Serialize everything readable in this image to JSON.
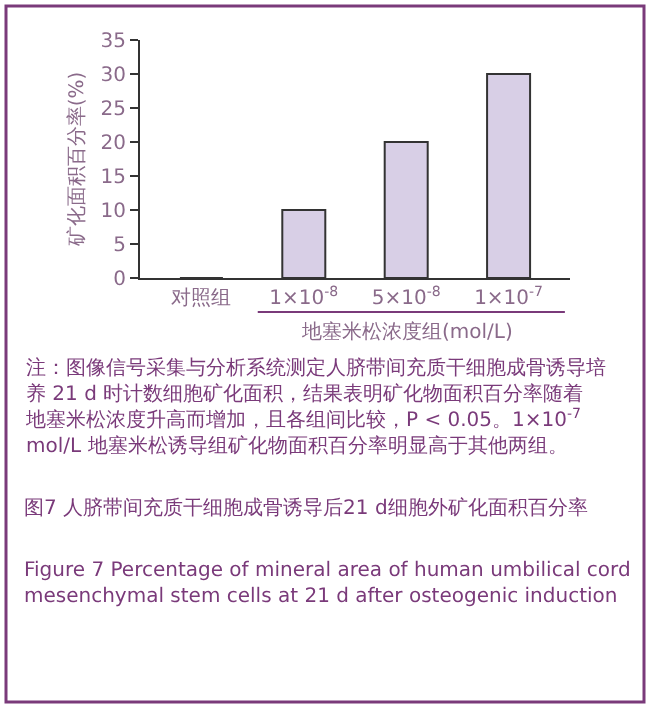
{
  "chart_data": {
    "type": "bar",
    "categories": [
      "对照组",
      "1×10$^{-8}$",
      "5×10$^{-8}$",
      "1×10$^{-7}$"
    ],
    "values": [
      0,
      10,
      20,
      30
    ],
    "color": "#d8cfe6",
    "ylim": [
      0,
      35
    ],
    "yticks": [
      0,
      5,
      10,
      15,
      20,
      25,
      30,
      35
    ],
    "legend": false,
    "xlabel": "地塞米松浓度组(mol/L)",
    "ylabel": "矿化面积百分率(%)",
    "annotations": [
      "注：图像信号采集与分析系统测定人脐带间充质干细胞成骨诱导培养 21 d 时计数细胞矿化面积，结果表明矿化物面积百分率随着地塞米松浓度升高而增加，且各组间比较，P < 0.05。1×10$^{-7}$ mol/L 地塞米松诱导组矿化物面积百分率明显高于其他两组。",
      "图7 人脐带间充质干细胞成骨诱导后21 d细胞外矿化面积百分率",
      "Figure 7 Percentage of mineral area of human umbilical cord mesenchymal stem cells at 21 d after osteogenic induction"
    ]
  }
}
